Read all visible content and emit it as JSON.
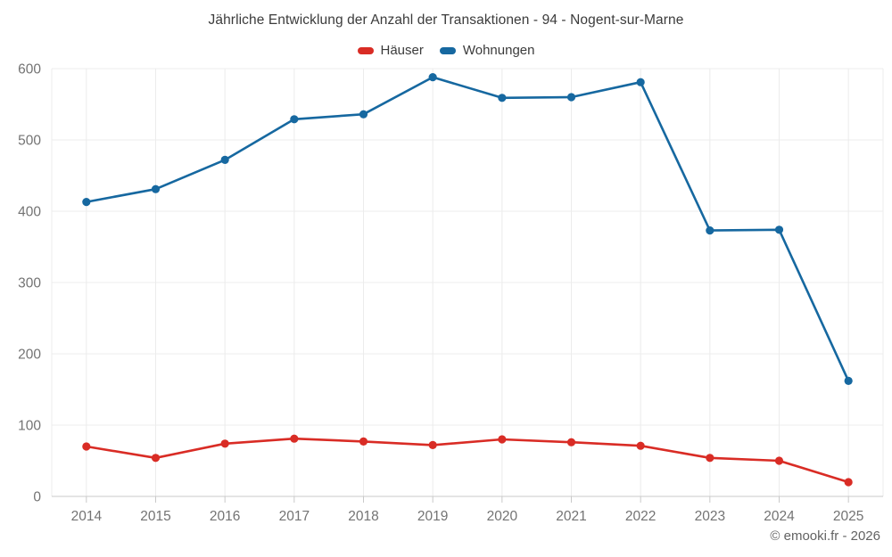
{
  "chart_data": {
    "type": "line",
    "title": "Jährliche Entwicklung der Anzahl der Transaktionen - 94 - Nogent-sur-Marne",
    "categories": [
      "2014",
      "2015",
      "2016",
      "2017",
      "2018",
      "2019",
      "2020",
      "2021",
      "2022",
      "2023",
      "2024",
      "2025"
    ],
    "series": [
      {
        "id": "haeuser",
        "name": "Häuser",
        "color": "#d92c25",
        "values": [
          70,
          54,
          74,
          81,
          77,
          72,
          80,
          76,
          71,
          54,
          50,
          20
        ]
      },
      {
        "id": "wohnungen",
        "name": "Wohnungen",
        "color": "#1668a0",
        "values": [
          413,
          431,
          472,
          529,
          536,
          588,
          559,
          560,
          581,
          373,
          374,
          162
        ]
      }
    ],
    "xlabel": "",
    "ylabel": "",
    "ylim": [
      0,
      600
    ],
    "yticks": [
      0,
      100,
      200,
      300,
      400,
      500,
      600
    ],
    "grid": true,
    "legend_position": "top",
    "style": {
      "grid_color": "#ececec",
      "axis_color": "#c9c9c9",
      "tick_label_color": "#737373",
      "title_color": "#3b3b3b",
      "legend_label_color": "#3b3b3b",
      "footer_color": "#636363",
      "background_color": "#ffffff"
    }
  },
  "footer": {
    "credit": "© emooki.fr - 2026"
  }
}
